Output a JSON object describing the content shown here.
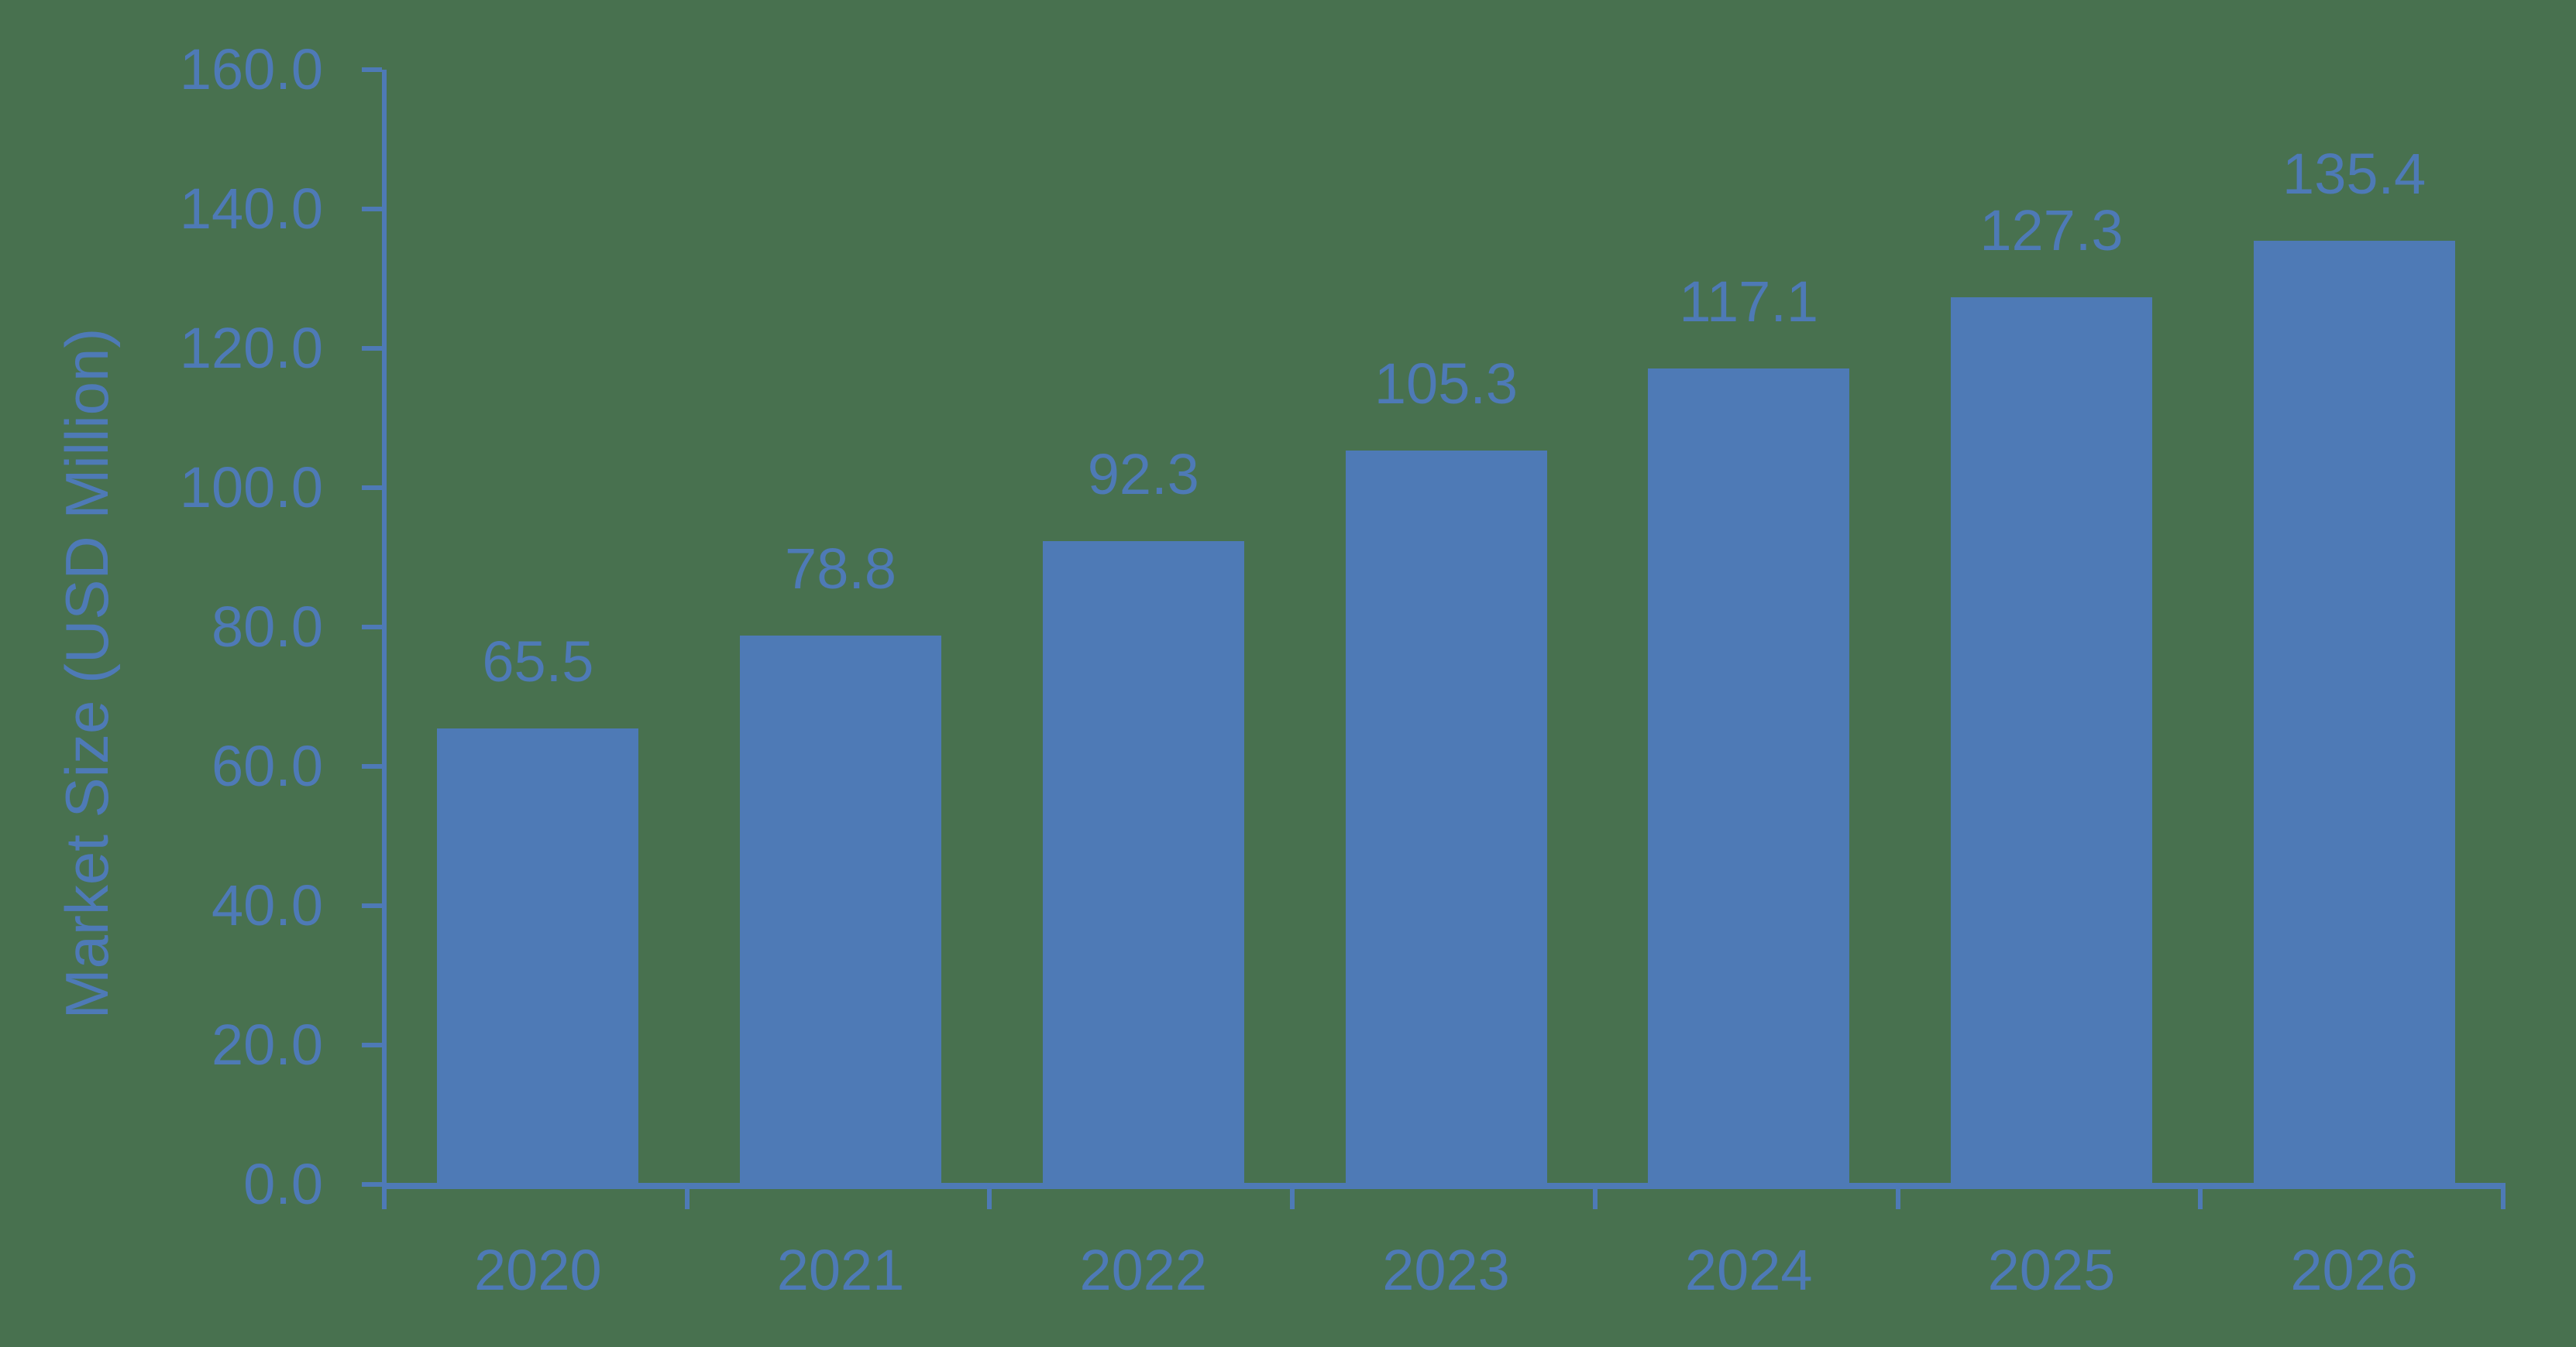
{
  "chart_data": {
    "type": "bar",
    "title": "",
    "xlabel": "",
    "ylabel": "Market Size (USD Million)",
    "categories": [
      "2020",
      "2021",
      "2022",
      "2023",
      "2024",
      "2025",
      "2026"
    ],
    "series": [
      {
        "name": "Market Size",
        "values": [
          65.5,
          78.8,
          92.3,
          105.3,
          117.1,
          127.3,
          135.4
        ],
        "data_labels": [
          "65.5",
          "78.8",
          "92.3",
          "105.3",
          "117.1",
          "127.3",
          "135.4"
        ]
      }
    ],
    "ylim": [
      0,
      160
    ],
    "ytick_step": 20,
    "ytick_labels": [
      "0.0",
      "20.0",
      "40.0",
      "60.0",
      "80.0",
      "100.0",
      "120.0",
      "140.0",
      "160.0"
    ],
    "grid": false,
    "legend_position": "none",
    "colors": {
      "bar": "#4E7AB6",
      "text": "#4E7AB6",
      "axis": "#4E7AB6",
      "background": "#48714F"
    }
  }
}
